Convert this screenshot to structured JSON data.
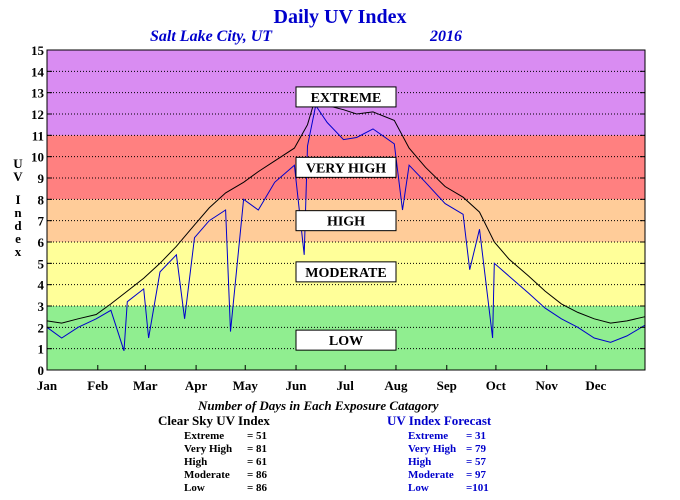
{
  "chart_data": {
    "type": "line",
    "title": "Daily UV Index",
    "subtitle_location": "Salt Lake City, UT",
    "subtitle_year": "2016",
    "ylabel": "UV Index",
    "ylim": [
      0,
      15
    ],
    "yticks": [
      "0",
      "1",
      "2",
      "3",
      "4",
      "5",
      "6",
      "7",
      "8",
      "9",
      "10",
      "11",
      "12",
      "13",
      "14",
      "15"
    ],
    "xticks": [
      "Jan",
      "Feb",
      "Mar",
      "Apr",
      "May",
      "Jun",
      "Jul",
      "Aug",
      "Sep",
      "Oct",
      "Nov",
      "Dec"
    ],
    "grid": true,
    "bands": [
      {
        "label": "LOW",
        "from": 0,
        "to": 3,
        "color": "#90ee90"
      },
      {
        "label": "MODERATE",
        "from": 3,
        "to": 6,
        "color": "#ffff99"
      },
      {
        "label": "HIGH",
        "from": 6,
        "to": 8,
        "color": "#ffcc99"
      },
      {
        "label": "VERY HIGH",
        "from": 8,
        "to": 11,
        "color": "#ff8080"
      },
      {
        "label": "EXTREME",
        "from": 11,
        "to": 15,
        "color": "#d98cf2"
      }
    ],
    "series": [
      {
        "color": "#000000",
        "x": [
          1,
          10,
          20,
          31,
          40,
          50,
          60,
          70,
          80,
          91,
          100,
          110,
          121,
          130,
          140,
          152,
          160,
          165,
          172,
          182,
          190,
          200,
          213,
          222,
          232,
          244,
          255,
          265,
          274,
          283,
          295,
          305,
          315,
          325,
          335,
          345,
          355,
          366
        ],
        "y": [
          2.3,
          2.2,
          2.4,
          2.6,
          3.1,
          3.7,
          4.3,
          5.0,
          5.8,
          6.8,
          7.6,
          8.3,
          8.8,
          9.3,
          9.8,
          10.4,
          11.5,
          12.8,
          12.4,
          12.2,
          12.0,
          12.1,
          11.7,
          10.4,
          9.5,
          8.6,
          8.1,
          7.4,
          6.0,
          5.2,
          4.4,
          3.7,
          3.1,
          2.7,
          2.4,
          2.2,
          2.3,
          2.5
        ]
      },
      {
        "color": "#0000cc",
        "x": [
          1,
          10,
          20,
          31,
          40,
          48,
          50,
          60,
          63,
          70,
          80,
          85,
          91,
          100,
          110,
          113,
          121,
          130,
          140,
          152,
          158,
          160,
          165,
          172,
          182,
          190,
          200,
          213,
          218,
          222,
          232,
          244,
          255,
          259,
          265,
          273,
          274,
          283,
          295,
          305,
          315,
          325,
          335,
          345,
          355,
          366
        ],
        "y": [
          2.0,
          1.5,
          2.0,
          2.4,
          2.8,
          0.9,
          3.2,
          3.8,
          1.5,
          4.6,
          5.4,
          2.4,
          6.2,
          7.0,
          7.5,
          1.8,
          8.0,
          7.5,
          8.8,
          9.6,
          5.4,
          10.5,
          12.4,
          11.6,
          10.8,
          10.9,
          11.3,
          10.6,
          7.5,
          9.6,
          8.8,
          7.8,
          7.3,
          4.7,
          6.6,
          1.5,
          5.0,
          4.4,
          3.6,
          2.9,
          2.4,
          2.0,
          1.5,
          1.3,
          1.6,
          2.1
        ]
      }
    ],
    "band_label_text": [
      "EXTREME",
      "VERY HIGH",
      "HIGH",
      "MODERATE",
      "LOW"
    ]
  },
  "stats": {
    "caption": "Number of Days in Each Exposure Catagory",
    "clear_sky": {
      "title": "Clear Sky UV Index",
      "rows": [
        {
          "label": "Extreme",
          "value": "= 51"
        },
        {
          "label": "Very High",
          "value": "= 81"
        },
        {
          "label": "High",
          "value": "= 61"
        },
        {
          "label": "Moderate",
          "value": "= 86"
        },
        {
          "label": "Low",
          "value": "= 86"
        }
      ]
    },
    "forecast": {
      "title": "UV Index Forecast",
      "rows": [
        {
          "label": "Extreme",
          "value": "= 31"
        },
        {
          "label": "Very High",
          "value": "= 79"
        },
        {
          "label": "High",
          "value": "= 57"
        },
        {
          "label": "Moderate",
          "value": "= 97"
        },
        {
          "label": "Low",
          "value": "=101"
        }
      ]
    }
  },
  "colors": {
    "title": "#0000cc",
    "forecast": "#0000cc",
    "text": "#000000"
  }
}
